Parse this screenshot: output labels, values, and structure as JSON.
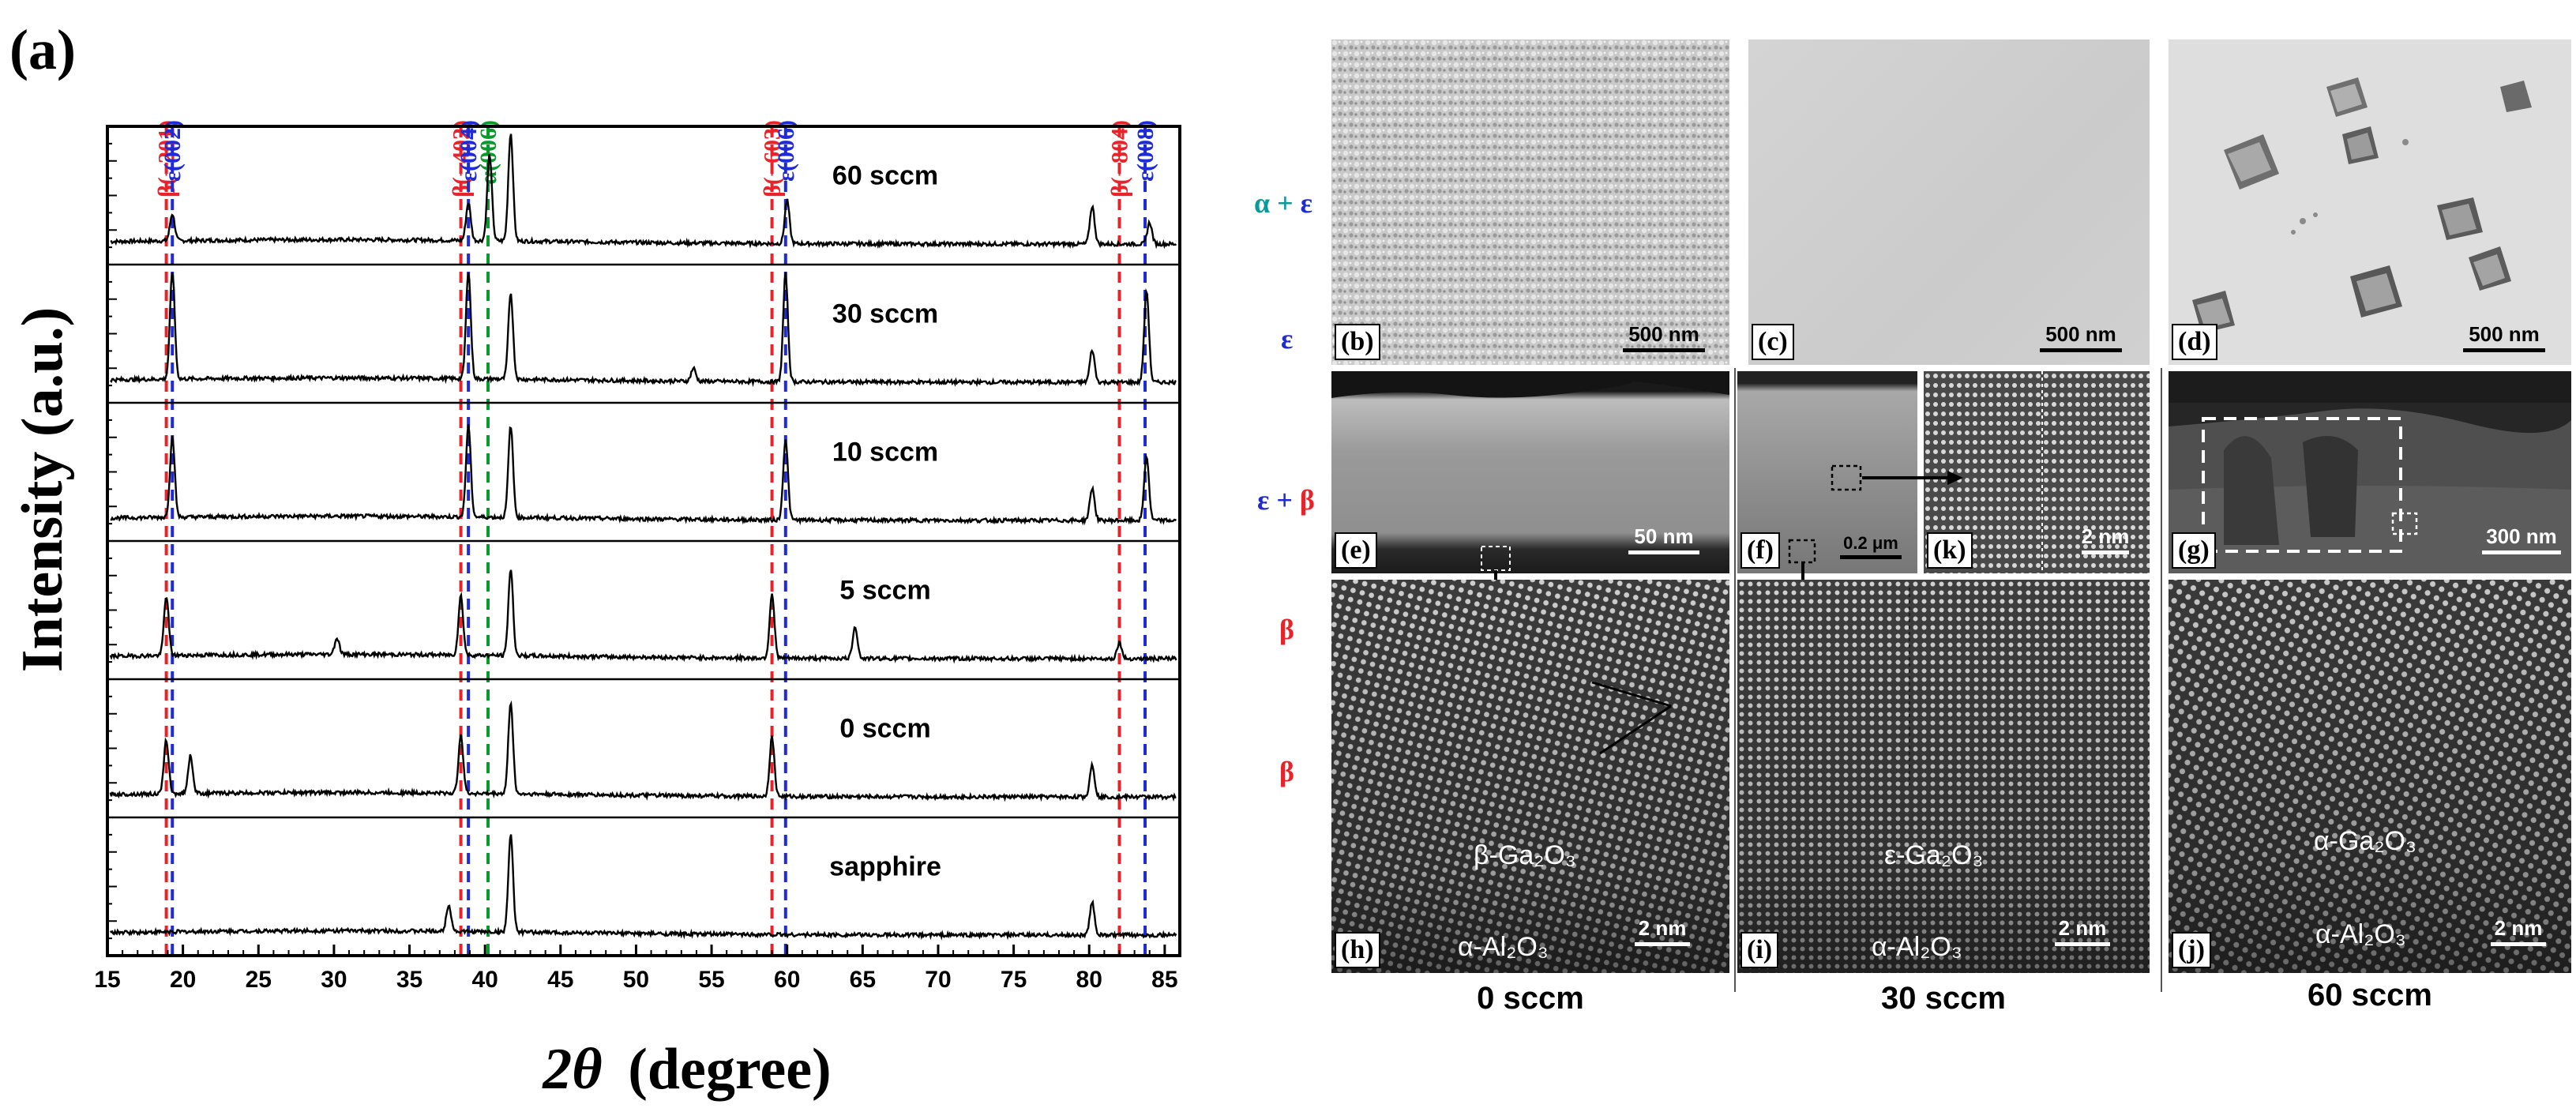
{
  "panel_a_label": "(a)",
  "chart_data": {
    "type": "line",
    "xlabel": "2θ (degree)",
    "xlabel_var": "2θ",
    "xlabel_unit": "(degree)",
    "ylabel": "Intensity (a.u.)",
    "xlim": [
      15,
      86
    ],
    "xticks": [
      "15",
      "20",
      "25",
      "30",
      "35",
      "40",
      "45",
      "50",
      "55",
      "60",
      "65",
      "70",
      "75",
      "80",
      "85"
    ],
    "xtick_values": [
      15,
      20,
      25,
      30,
      35,
      40,
      45,
      50,
      55,
      60,
      65,
      70,
      75,
      80,
      85
    ],
    "ref_lines": [
      {
        "label": "β(−201)",
        "x": 18.9,
        "color": "#e8232a"
      },
      {
        "label": "ε(002)",
        "x": 19.3,
        "color": "#1f2bd6"
      },
      {
        "label": "β(−402)",
        "x": 38.4,
        "color": "#e8232a"
      },
      {
        "label": "ε(004)",
        "x": 38.9,
        "color": "#1f2bd6"
      },
      {
        "label": "α(006)",
        "x": 40.2,
        "color": "#0a9a2c"
      },
      {
        "label": "β(−603)",
        "x": 59.0,
        "color": "#e8232a"
      },
      {
        "label": "ε(006)",
        "x": 59.9,
        "color": "#1f2bd6"
      },
      {
        "label": "β(−804)",
        "x": 82.0,
        "color": "#e8232a"
      },
      {
        "label": "ε(008)",
        "x": 83.7,
        "color": "#1f2bd6"
      }
    ],
    "series": [
      {
        "name": "60 sccm",
        "peaks": [
          [
            19.3,
            0.25
          ],
          [
            38.9,
            0.35
          ],
          [
            40.3,
            0.8
          ],
          [
            41.7,
            1.0
          ],
          [
            60.0,
            0.4
          ],
          [
            80.2,
            0.35
          ],
          [
            84.0,
            0.2
          ]
        ]
      },
      {
        "name": "30 sccm",
        "peaks": [
          [
            19.3,
            1.0
          ],
          [
            38.9,
            1.0
          ],
          [
            41.7,
            0.8
          ],
          [
            59.9,
            1.0
          ],
          [
            53.8,
            0.12
          ],
          [
            80.2,
            0.3
          ],
          [
            83.8,
            0.85
          ]
        ]
      },
      {
        "name": "10 sccm",
        "peaks": [
          [
            19.3,
            0.75
          ],
          [
            38.9,
            0.85
          ],
          [
            41.7,
            0.85
          ],
          [
            59.9,
            0.75
          ],
          [
            80.2,
            0.3
          ],
          [
            83.8,
            0.6
          ]
        ]
      },
      {
        "name": "5 sccm",
        "peaks": [
          [
            18.9,
            0.55
          ],
          [
            30.2,
            0.15
          ],
          [
            38.4,
            0.55
          ],
          [
            41.7,
            0.8
          ],
          [
            59.0,
            0.6
          ],
          [
            64.5,
            0.3
          ],
          [
            82.0,
            0.15
          ]
        ]
      },
      {
        "name": "0 sccm",
        "peaks": [
          [
            18.9,
            0.5
          ],
          [
            20.5,
            0.35
          ],
          [
            38.4,
            0.55
          ],
          [
            41.7,
            0.85
          ],
          [
            59.0,
            0.55
          ],
          [
            80.2,
            0.3
          ]
        ]
      },
      {
        "name": "sapphire",
        "peaks": [
          [
            37.6,
            0.25
          ],
          [
            41.7,
            0.9
          ],
          [
            80.2,
            0.3
          ]
        ]
      }
    ]
  },
  "phase_labels": [
    {
      "text": "α + ε",
      "parts": [
        {
          "t": "α",
          "c": "#0a9a9a"
        },
        {
          "t": " + ",
          "c": "#0a9a9a"
        },
        {
          "t": "ε",
          "c": "#1f2bd6"
        }
      ]
    },
    {
      "text": "ε",
      "parts": [
        {
          "t": "ε",
          "c": "#1f2bd6"
        }
      ]
    },
    {
      "text": "ε + β",
      "parts": [
        {
          "t": "ε + ",
          "c": "#1f2bd6"
        },
        {
          "t": "β",
          "c": "#e8232a"
        }
      ]
    },
    {
      "text": "β",
      "parts": [
        {
          "t": "β",
          "c": "#e8232a"
        }
      ]
    },
    {
      "text": "β",
      "parts": [
        {
          "t": "β",
          "c": "#e8232a"
        }
      ]
    }
  ],
  "panels": {
    "b": {
      "tag": "(b)",
      "scale": "500 nm"
    },
    "c": {
      "tag": "(c)",
      "scale": "500 nm"
    },
    "d": {
      "tag": "(d)",
      "scale": "500 nm"
    },
    "e": {
      "tag": "(e)",
      "scale": "50 nm"
    },
    "f": {
      "tag": "(f)",
      "scale": "0.2 μm"
    },
    "k": {
      "tag": "(k)",
      "scale": "2 nm"
    },
    "g": {
      "tag": "(g)",
      "scale": "300 nm"
    },
    "h": {
      "tag": "(h)",
      "scale": "2 nm",
      "film": "β-Ga₂O₃",
      "substrate": "α-Al₂O₃"
    },
    "i": {
      "tag": "(i)",
      "scale": "2 nm",
      "film": "ε-Ga₂O₃",
      "substrate": "α-Al₂O₃"
    },
    "j": {
      "tag": "(j)",
      "scale": "2 nm",
      "film": "α-Ga₂O₃",
      "substrate": "α-Al₂O₃"
    }
  },
  "column_captions": [
    "0 sccm",
    "30 sccm",
    "60 sccm"
  ],
  "colors": {
    "red": "#e8232a",
    "blue": "#1f2bd6",
    "green": "#0a9a2c",
    "teal": "#0a9a9a"
  }
}
